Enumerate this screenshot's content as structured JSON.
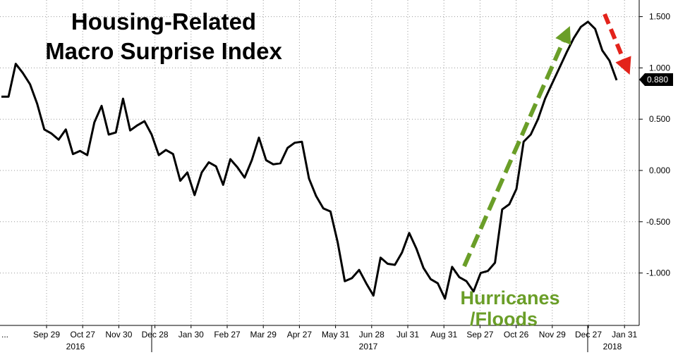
{
  "chart_data": {
    "type": "line",
    "title_lines": [
      "Housing-Related",
      "Macro Surprise Index"
    ],
    "ylim": [
      -1.5,
      1.6
    ],
    "y_ticks": [
      "1.500",
      "1.000",
      "0.500",
      "0.000",
      "-0.500",
      "-1.000"
    ],
    "y_tick_values": [
      1.5,
      1.0,
      0.5,
      0.0,
      -0.5,
      -1.0
    ],
    "x_tick_labels": [
      "Sep 29",
      "Oct 27",
      "Nov 30",
      "Dec 28",
      "Jan 30",
      "Feb 27",
      "Mar 29",
      "Apr 27",
      "May 31",
      "Jun 28",
      "Jul 31",
      "Aug 31",
      "Sep 27",
      "Oct 26",
      "Nov 29",
      "Dec 27",
      "Jan 31"
    ],
    "year_labels": [
      "2016",
      "2017",
      "2018"
    ],
    "grid": true,
    "series": [
      {
        "color": "#000000",
        "values": [
          0.72,
          0.72,
          1.04,
          0.95,
          0.84,
          0.65,
          0.4,
          0.36,
          0.3,
          0.4,
          0.16,
          0.19,
          0.15,
          0.47,
          0.63,
          0.35,
          0.37,
          0.7,
          0.39,
          0.44,
          0.48,
          0.35,
          0.15,
          0.2,
          0.16,
          -0.1,
          -0.02,
          -0.24,
          -0.02,
          0.08,
          0.04,
          -0.14,
          0.11,
          0.03,
          -0.07,
          0.1,
          0.32,
          0.1,
          0.06,
          0.07,
          0.22,
          0.27,
          0.28,
          -0.08,
          -0.25,
          -0.37,
          -0.4,
          -0.7,
          -1.08,
          -1.05,
          -0.97,
          -1.1,
          -1.22,
          -0.85,
          -0.91,
          -0.92,
          -0.8,
          -0.61,
          -0.76,
          -0.95,
          -1.06,
          -1.1,
          -1.25,
          -0.94,
          -1.04,
          -1.08,
          -1.18,
          -1.0,
          -0.98,
          -0.9,
          -0.38,
          -0.33,
          -0.18,
          0.28,
          0.35,
          0.5,
          0.7,
          0.85,
          1.0,
          1.15,
          1.29,
          1.4,
          1.45,
          1.38,
          1.17,
          1.07,
          0.88
        ]
      }
    ],
    "last_value_label": "0.880",
    "annotation": {
      "lines": [
        "Hurricanes",
        "/Floods"
      ],
      "color": "#6a9e28"
    },
    "arrows": [
      {
        "color": "#6a9e28",
        "direction": "up"
      },
      {
        "color": "#e3231b",
        "direction": "down"
      }
    ]
  }
}
